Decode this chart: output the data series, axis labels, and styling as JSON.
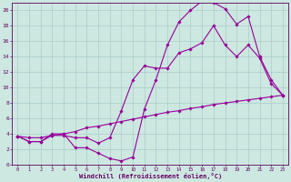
{
  "background_color": "#cce8e0",
  "grid_color": "#aacccc",
  "line_color": "#990099",
  "marker_color": "#990099",
  "xlabel": "Windchill (Refroidissement éolien,°C)",
  "xlabel_color": "#660066",
  "tick_color": "#660066",
  "xlim": [
    -0.5,
    23.5
  ],
  "ylim": [
    0,
    21
  ],
  "yticks": [
    0,
    2,
    4,
    6,
    8,
    10,
    12,
    14,
    16,
    18,
    20
  ],
  "xticks": [
    0,
    1,
    2,
    3,
    4,
    5,
    6,
    7,
    8,
    9,
    10,
    11,
    12,
    13,
    14,
    15,
    16,
    17,
    18,
    19,
    20,
    21,
    22,
    23
  ],
  "series": [
    {
      "x": [
        0,
        1,
        2,
        3,
        4,
        5,
        6,
        7,
        8,
        9,
        10,
        11,
        12,
        13,
        14,
        15,
        16,
        17,
        18,
        19,
        20,
        21,
        22,
        23
      ],
      "y": [
        3.7,
        3.0,
        3.0,
        4.0,
        4.0,
        2.2,
        2.2,
        1.5,
        0.8,
        0.5,
        1.0,
        7.2,
        11.0,
        15.5,
        18.5,
        20.0,
        21.2,
        21.0,
        20.2,
        18.2,
        19.2,
        14.0,
        11.0,
        9.0
      ]
    },
    {
      "x": [
        0,
        1,
        2,
        3,
        4,
        5,
        6,
        7,
        8,
        9,
        10,
        11,
        12,
        13,
        14,
        15,
        16,
        17,
        18,
        19,
        20,
        21,
        22,
        23
      ],
      "y": [
        3.7,
        3.0,
        3.0,
        3.8,
        3.8,
        3.5,
        3.5,
        2.8,
        3.5,
        7.0,
        11.0,
        12.8,
        12.5,
        12.5,
        14.5,
        15.0,
        15.8,
        18.0,
        15.5,
        14.0,
        15.5,
        13.8,
        10.5,
        9.0
      ]
    },
    {
      "x": [
        0,
        1,
        2,
        3,
        4,
        5,
        6,
        7,
        8,
        9,
        10,
        11,
        12,
        13,
        14,
        15,
        16,
        17,
        18,
        19,
        20,
        21,
        22,
        23
      ],
      "y": [
        3.7,
        3.5,
        3.5,
        3.8,
        4.0,
        4.3,
        4.8,
        5.0,
        5.3,
        5.6,
        5.9,
        6.2,
        6.5,
        6.8,
        7.0,
        7.3,
        7.5,
        7.8,
        8.0,
        8.2,
        8.4,
        8.6,
        8.8,
        9.0
      ]
    }
  ]
}
